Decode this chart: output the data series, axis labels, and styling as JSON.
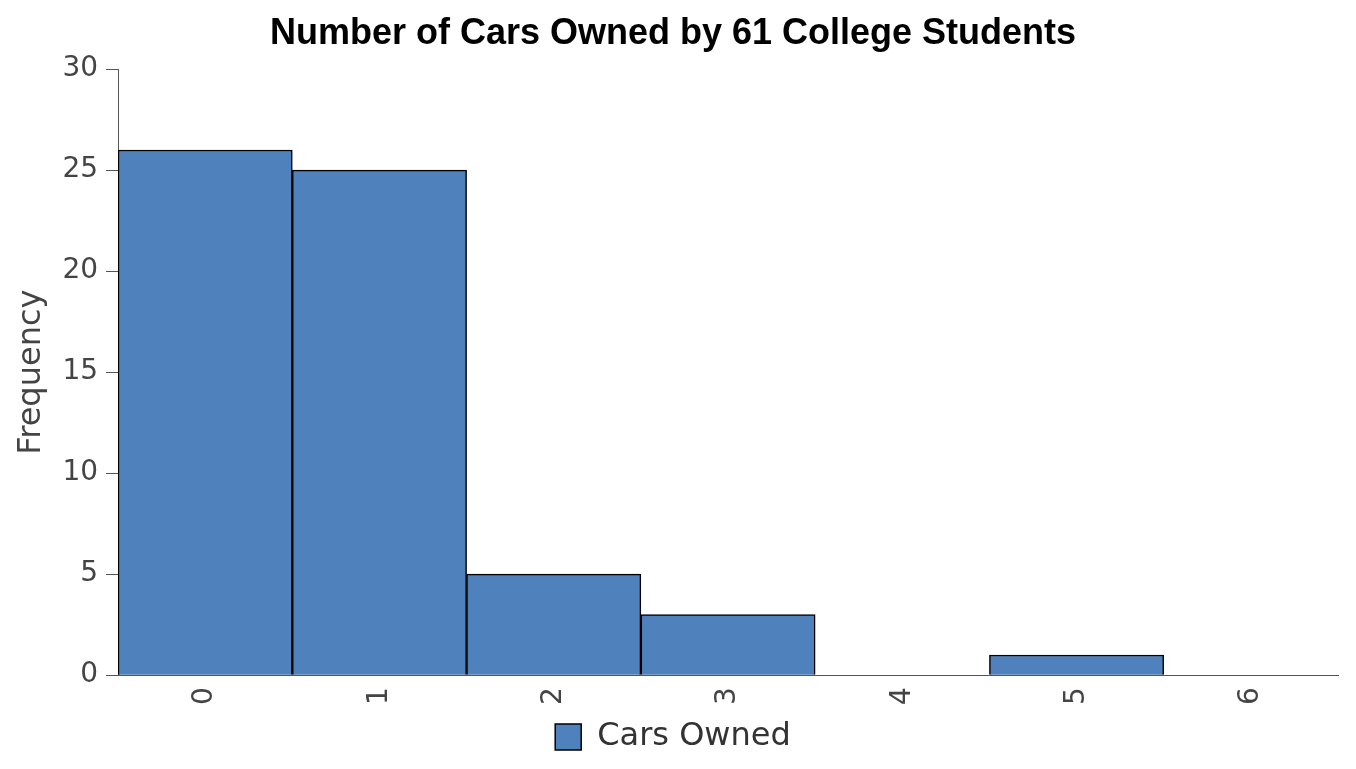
{
  "chart_data": {
    "type": "bar",
    "title": "Number of Cars Owned by 61 College Students",
    "ylabel": "Frequency",
    "categories": [
      "0",
      "1",
      "2",
      "3",
      "4",
      "5",
      "6"
    ],
    "series": [
      {
        "name": "Cars Owned",
        "color": "#4f81bd",
        "values": [
          26,
          25,
          5,
          3,
          0,
          1,
          0
        ]
      }
    ],
    "ylim": [
      0,
      30
    ],
    "yticks": [
      0,
      5,
      10,
      15,
      20,
      25,
      30
    ],
    "grid": false,
    "legend": "bottom"
  }
}
